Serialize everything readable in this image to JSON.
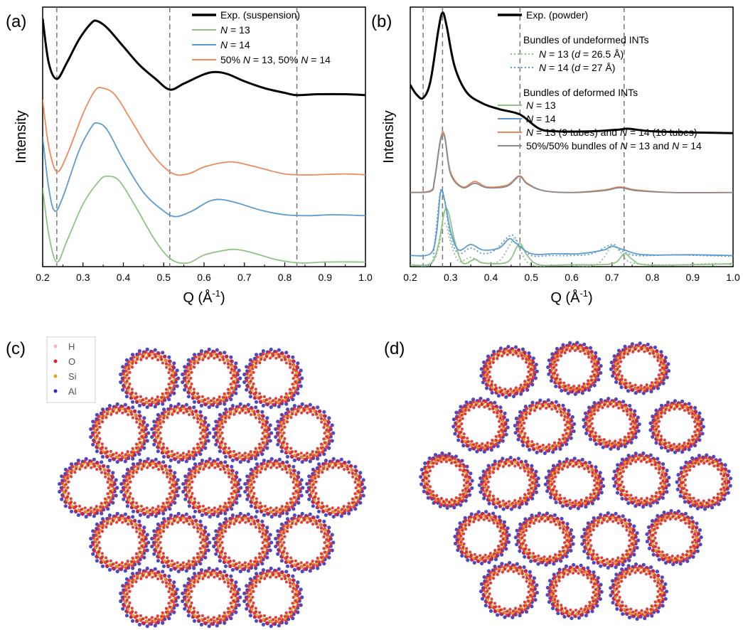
{
  "panel_labels": [
    "(a)",
    "(b)",
    "(c)",
    "(d)"
  ],
  "colors": {
    "exp": "#000000",
    "n13": "#8fc485",
    "n14": "#5b9bd0",
    "mix": "#ee8a5a",
    "gray": "#8a8a8a",
    "H": "#f3b7c4",
    "O": "#d6202d",
    "Si": "#e0a51a",
    "Al": "#2a2ab8"
  },
  "chart_data": [
    {
      "type": "line",
      "panel": "(a)",
      "xlabel": "Q (Å⁻¹)",
      "ylabel": "Intensity",
      "xlim": [
        0.2,
        1.0
      ],
      "xticks": [
        "0.2",
        "0.3",
        "0.4",
        "0.5",
        "0.6",
        "0.7",
        "0.8",
        "0.9",
        "1.0"
      ],
      "legend_position": "top-right",
      "vlines": [
        0.235,
        0.515,
        0.83
      ],
      "series": [
        {
          "name": "Exp. (suspension)",
          "style": "exp",
          "offset": 3.0,
          "points": [
            [
              0.2,
              2.35
            ],
            [
              0.215,
              1.4
            ],
            [
              0.235,
              1.05
            ],
            [
              0.26,
              1.4
            ],
            [
              0.29,
              1.9
            ],
            [
              0.32,
              2.25
            ],
            [
              0.335,
              2.3
            ],
            [
              0.36,
              2.15
            ],
            [
              0.4,
              1.75
            ],
            [
              0.44,
              1.35
            ],
            [
              0.48,
              1.05
            ],
            [
              0.515,
              0.82
            ],
            [
              0.55,
              0.95
            ],
            [
              0.6,
              1.15
            ],
            [
              0.63,
              1.2
            ],
            [
              0.66,
              1.15
            ],
            [
              0.7,
              1.0
            ],
            [
              0.75,
              0.85
            ],
            [
              0.8,
              0.75
            ],
            [
              0.83,
              0.7
            ],
            [
              0.88,
              0.72
            ],
            [
              0.95,
              0.72
            ],
            [
              1.0,
              0.7
            ]
          ]
        },
        {
          "name": "N = 13",
          "style": "n13",
          "offset": 0.0,
          "points": [
            [
              0.2,
              1.7
            ],
            [
              0.215,
              0.7
            ],
            [
              0.235,
              0.1
            ],
            [
              0.26,
              0.55
            ],
            [
              0.3,
              1.35
            ],
            [
              0.34,
              1.85
            ],
            [
              0.36,
              1.95
            ],
            [
              0.39,
              1.85
            ],
            [
              0.43,
              1.3
            ],
            [
              0.48,
              0.55
            ],
            [
              0.52,
              0.15
            ],
            [
              0.56,
              0.08
            ],
            [
              0.6,
              0.25
            ],
            [
              0.65,
              0.35
            ],
            [
              0.68,
              0.37
            ],
            [
              0.72,
              0.3
            ],
            [
              0.78,
              0.15
            ],
            [
              0.84,
              0.08
            ],
            [
              0.9,
              0.1
            ],
            [
              1.0,
              0.1
            ]
          ]
        },
        {
          "name": "N = 14",
          "style": "n14",
          "offset": 1.0,
          "points": [
            [
              0.2,
              1.8
            ],
            [
              0.215,
              0.7
            ],
            [
              0.23,
              0.2
            ],
            [
              0.25,
              0.5
            ],
            [
              0.29,
              1.5
            ],
            [
              0.32,
              2.0
            ],
            [
              0.335,
              2.1
            ],
            [
              0.36,
              1.95
            ],
            [
              0.4,
              1.3
            ],
            [
              0.45,
              0.6
            ],
            [
              0.5,
              0.2
            ],
            [
              0.53,
              0.08
            ],
            [
              0.57,
              0.2
            ],
            [
              0.61,
              0.4
            ],
            [
              0.64,
              0.45
            ],
            [
              0.68,
              0.38
            ],
            [
              0.74,
              0.22
            ],
            [
              0.8,
              0.12
            ],
            [
              0.86,
              0.1
            ],
            [
              0.92,
              0.12
            ],
            [
              1.0,
              0.1
            ]
          ]
        },
        {
          "name": "50% N = 13, 50% N = 14",
          "style": "mix",
          "offset": 1.9,
          "points": [
            [
              0.2,
              1.7
            ],
            [
              0.215,
              0.7
            ],
            [
              0.235,
              0.15
            ],
            [
              0.26,
              0.5
            ],
            [
              0.3,
              1.4
            ],
            [
              0.33,
              1.9
            ],
            [
              0.35,
              1.95
            ],
            [
              0.38,
              1.8
            ],
            [
              0.42,
              1.25
            ],
            [
              0.47,
              0.55
            ],
            [
              0.52,
              0.12
            ],
            [
              0.56,
              0.1
            ],
            [
              0.6,
              0.25
            ],
            [
              0.65,
              0.35
            ],
            [
              0.68,
              0.35
            ],
            [
              0.73,
              0.25
            ],
            [
              0.8,
              0.1
            ],
            [
              0.86,
              0.08
            ],
            [
              0.95,
              0.1
            ],
            [
              1.0,
              0.08
            ]
          ]
        }
      ]
    },
    {
      "type": "line",
      "panel": "(b)",
      "xlabel": "Q (Å⁻¹)",
      "ylabel": "Intensity",
      "xlim": [
        0.2,
        1.0
      ],
      "xticks": [
        "0.2",
        "0.3",
        "0.4",
        "0.5",
        "0.6",
        "0.7",
        "0.8",
        "0.9",
        "1.0"
      ],
      "legend_position": "top-right",
      "legend_headers": [
        "Bundles of undeformed INTs",
        "Bundles of deformed INTs"
      ],
      "vlines": [
        0.232,
        0.28,
        0.472,
        0.73
      ],
      "series": [
        {
          "name": "Exp. (powder)",
          "style": "exp",
          "dashed": false,
          "offset": 3.6,
          "points": [
            [
              0.2,
              1.3
            ],
            [
              0.215,
              1.05
            ],
            [
              0.232,
              0.95
            ],
            [
              0.25,
              1.4
            ],
            [
              0.27,
              2.8
            ],
            [
              0.28,
              3.25
            ],
            [
              0.29,
              2.9
            ],
            [
              0.31,
              1.8
            ],
            [
              0.34,
              1.1
            ],
            [
              0.38,
              0.8
            ],
            [
              0.42,
              0.65
            ],
            [
              0.46,
              0.55
            ],
            [
              0.48,
              0.45
            ],
            [
              0.52,
              0.12
            ],
            [
              0.56,
              0.05
            ],
            [
              0.65,
              0.05
            ],
            [
              0.72,
              0.1
            ],
            [
              0.74,
              0.12
            ],
            [
              0.8,
              0.05
            ],
            [
              0.9,
              0.02
            ],
            [
              1.0,
              0.0
            ]
          ]
        },
        {
          "name": "N = 13 (d = 26.5 Å)",
          "style": "n13",
          "dashed": true,
          "offset": 0.0,
          "points": [
            [
              0.2,
              0.05
            ],
            [
              0.25,
              0.08
            ],
            [
              0.27,
              0.5
            ],
            [
              0.28,
              1.1
            ],
            [
              0.29,
              1.1
            ],
            [
              0.3,
              0.65
            ],
            [
              0.32,
              0.15
            ],
            [
              0.35,
              0.25
            ],
            [
              0.38,
              0.1
            ],
            [
              0.42,
              0.15
            ],
            [
              0.45,
              0.65
            ],
            [
              0.46,
              0.75
            ],
            [
              0.47,
              0.5
            ],
            [
              0.5,
              0.05
            ],
            [
              0.58,
              0.05
            ],
            [
              0.66,
              0.05
            ],
            [
              0.7,
              0.55
            ],
            [
              0.72,
              0.4
            ],
            [
              0.75,
              0.1
            ],
            [
              0.85,
              0.05
            ],
            [
              0.95,
              0.08
            ],
            [
              1.0,
              0.05
            ]
          ]
        },
        {
          "name": "N = 14 (d = 27 Å)",
          "style": "n14",
          "dashed": true,
          "offset": 0.0,
          "points": [
            [
              0.2,
              0.05
            ],
            [
              0.25,
              0.05
            ],
            [
              0.26,
              0.6
            ],
            [
              0.275,
              2.05
            ],
            [
              0.285,
              1.8
            ],
            [
              0.3,
              0.8
            ],
            [
              0.32,
              0.35
            ],
            [
              0.35,
              0.5
            ],
            [
              0.38,
              0.35
            ],
            [
              0.41,
              0.45
            ],
            [
              0.45,
              0.85
            ],
            [
              0.47,
              0.6
            ],
            [
              0.5,
              0.3
            ],
            [
              0.55,
              0.3
            ],
            [
              0.6,
              0.3
            ],
            [
              0.65,
              0.35
            ],
            [
              0.7,
              0.6
            ],
            [
              0.72,
              0.45
            ],
            [
              0.76,
              0.3
            ],
            [
              0.85,
              0.32
            ],
            [
              0.92,
              0.3
            ],
            [
              1.0,
              0.28
            ]
          ]
        },
        {
          "name": "N = 13",
          "style": "n13",
          "dashed": false,
          "offset": 0.0,
          "points": [
            [
              0.2,
              0.05
            ],
            [
              0.25,
              0.08
            ],
            [
              0.27,
              0.6
            ],
            [
              0.285,
              1.5
            ],
            [
              0.295,
              1.45
            ],
            [
              0.31,
              0.7
            ],
            [
              0.33,
              0.1
            ],
            [
              0.36,
              0.2
            ],
            [
              0.38,
              0.1
            ],
            [
              0.44,
              0.12
            ],
            [
              0.465,
              0.55
            ],
            [
              0.475,
              0.6
            ],
            [
              0.49,
              0.3
            ],
            [
              0.52,
              0.05
            ],
            [
              0.6,
              0.05
            ],
            [
              0.7,
              0.08
            ],
            [
              0.73,
              0.35
            ],
            [
              0.75,
              0.2
            ],
            [
              0.78,
              0.05
            ],
            [
              0.9,
              0.05
            ],
            [
              1.0,
              0.08
            ]
          ]
        },
        {
          "name": "N = 14",
          "style": "n14",
          "dashed": false,
          "offset": 0.0,
          "points": [
            [
              0.2,
              0.3
            ],
            [
              0.25,
              0.35
            ],
            [
              0.265,
              0.9
            ],
            [
              0.275,
              2.0
            ],
            [
              0.285,
              1.8
            ],
            [
              0.3,
              0.95
            ],
            [
              0.32,
              0.45
            ],
            [
              0.35,
              0.6
            ],
            [
              0.38,
              0.45
            ],
            [
              0.42,
              0.5
            ],
            [
              0.445,
              0.75
            ],
            [
              0.46,
              0.65
            ],
            [
              0.5,
              0.35
            ],
            [
              0.56,
              0.35
            ],
            [
              0.62,
              0.35
            ],
            [
              0.68,
              0.45
            ],
            [
              0.7,
              0.55
            ],
            [
              0.73,
              0.45
            ],
            [
              0.78,
              0.32
            ],
            [
              0.9,
              0.32
            ],
            [
              1.0,
              0.3
            ]
          ]
        },
        {
          "name": "N = 13 (9 tubes) and N = 14 (10 tubes)",
          "style": "mix",
          "dashed": false,
          "offset": 1.55,
          "points": [
            [
              0.2,
              0.45
            ],
            [
              0.25,
              0.5
            ],
            [
              0.26,
              0.8
            ],
            [
              0.275,
              1.9
            ],
            [
              0.285,
              2.0
            ],
            [
              0.3,
              1.0
            ],
            [
              0.33,
              0.6
            ],
            [
              0.36,
              0.75
            ],
            [
              0.39,
              0.6
            ],
            [
              0.44,
              0.65
            ],
            [
              0.47,
              0.9
            ],
            [
              0.49,
              0.7
            ],
            [
              0.53,
              0.5
            ],
            [
              0.6,
              0.45
            ],
            [
              0.68,
              0.52
            ],
            [
              0.72,
              0.6
            ],
            [
              0.76,
              0.52
            ],
            [
              0.85,
              0.45
            ],
            [
              1.0,
              0.45
            ]
          ]
        },
        {
          "name": "50%/50% bundles of N = 13 and N = 14",
          "style": "gray",
          "dashed": false,
          "offset": 1.55,
          "points": [
            [
              0.2,
              0.45
            ],
            [
              0.25,
              0.48
            ],
            [
              0.26,
              0.75
            ],
            [
              0.275,
              1.85
            ],
            [
              0.285,
              1.95
            ],
            [
              0.3,
              0.95
            ],
            [
              0.33,
              0.58
            ],
            [
              0.36,
              0.7
            ],
            [
              0.39,
              0.58
            ],
            [
              0.44,
              0.62
            ],
            [
              0.47,
              0.88
            ],
            [
              0.49,
              0.68
            ],
            [
              0.53,
              0.5
            ],
            [
              0.6,
              0.45
            ],
            [
              0.68,
              0.5
            ],
            [
              0.72,
              0.58
            ],
            [
              0.76,
              0.5
            ],
            [
              0.85,
              0.45
            ],
            [
              1.0,
              0.45
            ]
          ]
        }
      ]
    }
  ],
  "structure_legend": [
    "H",
    "O",
    "Si",
    "Al"
  ]
}
